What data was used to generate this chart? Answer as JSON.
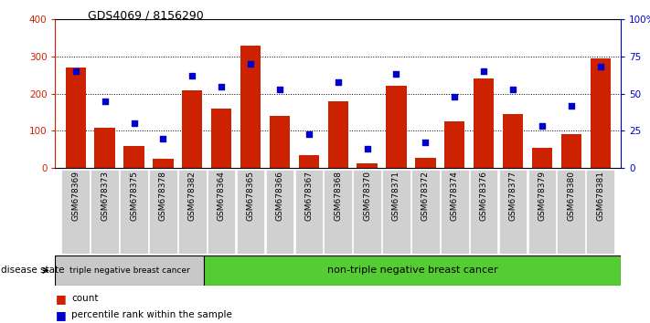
{
  "title": "GDS4069 / 8156290",
  "samples": [
    "GSM678369",
    "GSM678373",
    "GSM678375",
    "GSM678378",
    "GSM678382",
    "GSM678364",
    "GSM678365",
    "GSM678366",
    "GSM678367",
    "GSM678368",
    "GSM678370",
    "GSM678371",
    "GSM678372",
    "GSM678374",
    "GSM678376",
    "GSM678377",
    "GSM678379",
    "GSM678380",
    "GSM678381"
  ],
  "counts": [
    270,
    108,
    60,
    25,
    210,
    160,
    330,
    140,
    35,
    180,
    12,
    222,
    28,
    125,
    240,
    145,
    55,
    90,
    295
  ],
  "percentiles": [
    65,
    45,
    30,
    20,
    62,
    55,
    70,
    53,
    23,
    58,
    13,
    63,
    17,
    48,
    65,
    53,
    28,
    42,
    68
  ],
  "ylim_left": [
    0,
    400
  ],
  "ylim_right": [
    0,
    100
  ],
  "yticks_left": [
    0,
    100,
    200,
    300,
    400
  ],
  "yticks_right": [
    0,
    25,
    50,
    75,
    100
  ],
  "ytick_labels_right": [
    "0",
    "25",
    "50",
    "75",
    "100%"
  ],
  "bar_color": "#cc2200",
  "dot_color": "#0000cc",
  "grid_color": "#000000",
  "group1_label": "triple negative breast cancer",
  "group2_label": "non-triple negative breast cancer",
  "group1_count": 5,
  "group2_count": 14,
  "disease_state_label": "disease state",
  "legend_bar_label": "count",
  "legend_dot_label": "percentile rank within the sample",
  "group1_bg": "#c8c8c8",
  "group2_bg": "#55cc33",
  "xtick_bg": "#d0d0d0"
}
